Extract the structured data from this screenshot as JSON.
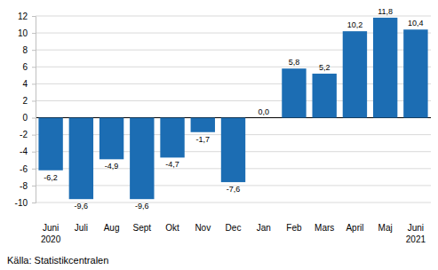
{
  "chart_data": {
    "type": "bar",
    "categories": [
      "Juni 2020",
      "Juli",
      "Aug",
      "Sept",
      "Okt",
      "Nov",
      "Dec",
      "Jan",
      "Feb",
      "Mars",
      "April",
      "Maj",
      "Juni 2021"
    ],
    "values": [
      -6.2,
      -9.6,
      -4.9,
      -9.6,
      -4.7,
      -1.7,
      -7.6,
      0.0,
      5.8,
      5.2,
      10.2,
      11.8,
      10.4
    ],
    "value_labels": [
      "-6,2",
      "-9,6",
      "-4,9",
      "-9,6",
      "-4,7",
      "-1,7",
      "-7,6",
      "0,0",
      "5,8",
      "5,2",
      "10,2",
      "11,8",
      "10,4"
    ],
    "color": "#1c6db3",
    "ylim": [
      -10,
      12
    ],
    "yticks": [
      -10,
      -8,
      -6,
      -4,
      -2,
      0,
      2,
      4,
      6,
      8,
      10,
      12
    ],
    "grid": true,
    "data_labels": true,
    "source": "Källa: Statistikcentralen"
  }
}
